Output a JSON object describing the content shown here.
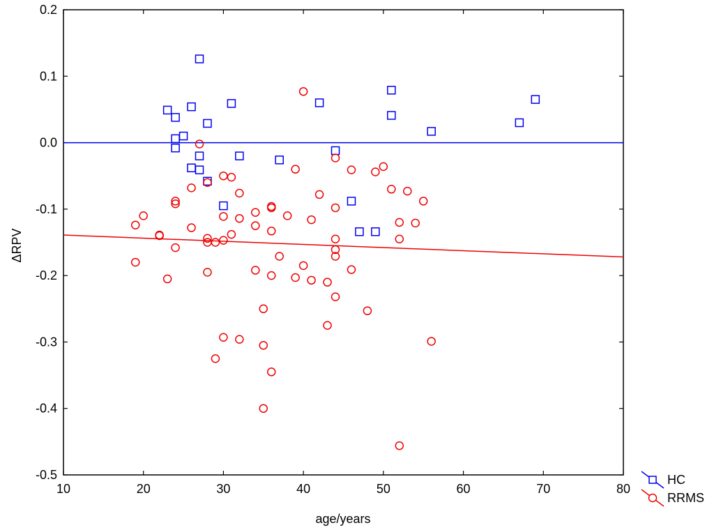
{
  "chart_data": {
    "type": "scatter",
    "title": "",
    "xlabel": "age/years",
    "ylabel": "ΔRPV",
    "xlim": [
      10,
      80
    ],
    "ylim": [
      -0.5,
      0.2
    ],
    "xticks": [
      "10",
      "20",
      "30",
      "40",
      "50",
      "60",
      "70",
      "80"
    ],
    "yticks": [
      "0.2",
      "0.1",
      "0.0",
      "-0.1",
      "-0.2",
      "-0.3",
      "-0.4",
      "-0.5"
    ],
    "grid": false,
    "legend_position": "bottom-right",
    "series": [
      {
        "name": "HC",
        "marker": "square",
        "color": "#0000ee",
        "fit_line": {
          "x": [
            10,
            80
          ],
          "y": [
            0.0,
            0.0
          ]
        },
        "points": [
          [
            23,
            0.049
          ],
          [
            24,
            0.038
          ],
          [
            24,
            0.006
          ],
          [
            24,
            -0.008
          ],
          [
            25,
            0.01
          ],
          [
            26,
            0.054
          ],
          [
            26,
            -0.038
          ],
          [
            27,
            0.126
          ],
          [
            27,
            -0.02
          ],
          [
            27,
            -0.041
          ],
          [
            28,
            0.029
          ],
          [
            28,
            -0.058
          ],
          [
            30,
            -0.095
          ],
          [
            31,
            0.059
          ],
          [
            32,
            -0.02
          ],
          [
            37,
            -0.026
          ],
          [
            42,
            0.06
          ],
          [
            44,
            -0.012
          ],
          [
            46,
            -0.088
          ],
          [
            47,
            -0.134
          ],
          [
            49,
            -0.134
          ],
          [
            51,
            0.079
          ],
          [
            51,
            0.041
          ],
          [
            56,
            0.017
          ],
          [
            67,
            0.03
          ],
          [
            69,
            0.065
          ]
        ]
      },
      {
        "name": "RRMS",
        "marker": "circle",
        "color": "#ee0000",
        "fit_line": {
          "x": [
            10,
            80
          ],
          "y": [
            -0.139,
            -0.172
          ]
        },
        "points": [
          [
            19,
            -0.124
          ],
          [
            19,
            -0.18
          ],
          [
            20,
            -0.11
          ],
          [
            22,
            -0.139
          ],
          [
            22,
            -0.14
          ],
          [
            23,
            -0.205
          ],
          [
            24,
            -0.088
          ],
          [
            24,
            -0.092
          ],
          [
            24,
            -0.158
          ],
          [
            26,
            -0.068
          ],
          [
            26,
            -0.128
          ],
          [
            27,
            -0.002
          ],
          [
            28,
            -0.06
          ],
          [
            28,
            -0.144
          ],
          [
            28,
            -0.15
          ],
          [
            28,
            -0.195
          ],
          [
            29,
            -0.15
          ],
          [
            29,
            -0.325
          ],
          [
            30,
            -0.05
          ],
          [
            30,
            -0.111
          ],
          [
            30,
            -0.147
          ],
          [
            30,
            -0.293
          ],
          [
            31,
            -0.052
          ],
          [
            31,
            -0.138
          ],
          [
            32,
            -0.076
          ],
          [
            32,
            -0.114
          ],
          [
            32,
            -0.296
          ],
          [
            34,
            -0.105
          ],
          [
            34,
            -0.125
          ],
          [
            34,
            -0.192
          ],
          [
            35,
            -0.25
          ],
          [
            35,
            -0.305
          ],
          [
            35,
            -0.4
          ],
          [
            36,
            -0.096
          ],
          [
            36,
            -0.098
          ],
          [
            36,
            -0.133
          ],
          [
            36,
            -0.2
          ],
          [
            36,
            -0.345
          ],
          [
            37,
            -0.171
          ],
          [
            38,
            -0.11
          ],
          [
            39,
            -0.04
          ],
          [
            39,
            -0.203
          ],
          [
            40,
            0.077
          ],
          [
            40,
            -0.185
          ],
          [
            41,
            -0.116
          ],
          [
            41,
            -0.207
          ],
          [
            42,
            -0.078
          ],
          [
            43,
            -0.21
          ],
          [
            43,
            -0.275
          ],
          [
            44,
            -0.023
          ],
          [
            44,
            -0.098
          ],
          [
            44,
            -0.145
          ],
          [
            44,
            -0.161
          ],
          [
            44,
            -0.171
          ],
          [
            44,
            -0.232
          ],
          [
            46,
            -0.041
          ],
          [
            46,
            -0.191
          ],
          [
            48,
            -0.253
          ],
          [
            49,
            -0.044
          ],
          [
            50,
            -0.036
          ],
          [
            51,
            -0.07
          ],
          [
            52,
            -0.12
          ],
          [
            52,
            -0.145
          ],
          [
            52,
            -0.456
          ],
          [
            53,
            -0.073
          ],
          [
            54,
            -0.121
          ],
          [
            55,
            -0.088
          ],
          [
            56,
            -0.299
          ]
        ]
      }
    ]
  }
}
